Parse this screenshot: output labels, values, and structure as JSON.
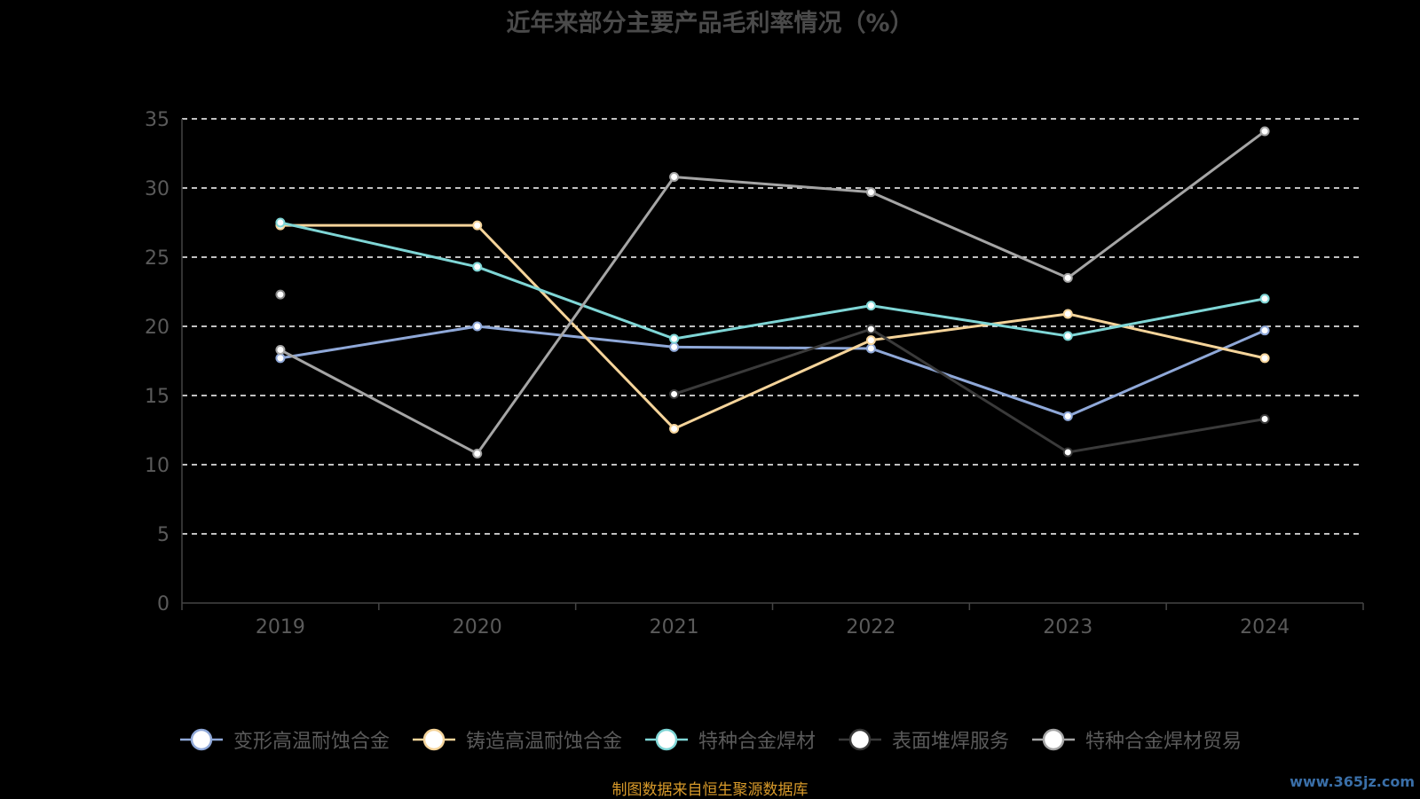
{
  "chart_data": {
    "type": "line",
    "title": "近年来部分主要产品毛利率情况（%）",
    "categories": [
      "2019",
      "2020",
      "2021",
      "2022",
      "2023",
      "2024"
    ],
    "ylim": [
      0,
      35
    ],
    "yticks": [
      0,
      5,
      10,
      15,
      20,
      25,
      30,
      35
    ],
    "grid": true,
    "legend_position": "bottom",
    "series": [
      {
        "name": "变形高温耐蚀合金",
        "color": "#8fa8d8",
        "values": [
          17.7,
          20.0,
          18.5,
          18.4,
          13.5,
          19.7
        ]
      },
      {
        "name": "铸造高温耐蚀合金",
        "color": "#f5d49a",
        "values": [
          27.3,
          27.3,
          12.6,
          19.0,
          20.9,
          17.7
        ]
      },
      {
        "name": "特种合金焊材",
        "color": "#7fd6d6",
        "values": [
          27.5,
          24.3,
          19.1,
          21.5,
          19.3,
          22.0
        ]
      },
      {
        "name": "表面堆焊服务",
        "color": "#3a3a3a",
        "values": [
          null,
          null,
          15.1,
          19.8,
          10.9,
          13.3
        ]
      },
      {
        "name": "特种合金焊材贸易",
        "color": "#a5a5a5",
        "values": [
          18.3,
          10.8,
          30.8,
          29.7,
          23.5,
          34.1
        ]
      }
    ],
    "extra_points": [
      {
        "x": "2019",
        "y": 22.3
      }
    ]
  },
  "source_note": "制图数据来自恒生聚源数据库",
  "watermark": "www.365jz.com"
}
